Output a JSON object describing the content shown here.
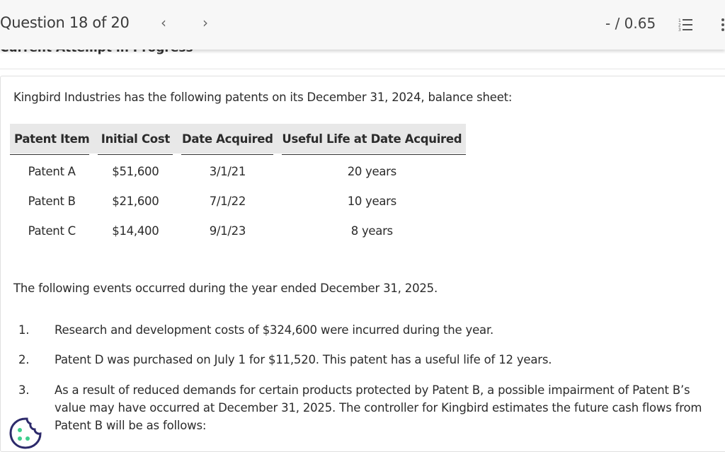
{
  "header": {
    "question_label": "Question 18 of 20",
    "prev_icon": "chevron-left-icon",
    "next_icon": "chevron-right-icon",
    "score": "- / 0.65",
    "list_icon": "numbered-list-icon",
    "more_icon": "more-vertical-icon"
  },
  "attempt_status": "Current Attempt in Progress",
  "question": {
    "intro": "Kingbird Industries has the following patents on its December 31, 2024, balance sheet:",
    "table": {
      "headers": [
        "Patent Item",
        "Initial Cost",
        "Date Acquired",
        "Useful Life at Date Acquired"
      ],
      "rows": [
        [
          "Patent A",
          "$51,600",
          "3/1/21",
          "20 years"
        ],
        [
          "Patent B",
          "$21,600",
          "7/1/22",
          "10 years"
        ],
        [
          "Patent C",
          "$14,400",
          "9/1/23",
          "8 years"
        ]
      ]
    },
    "events_intro": "The following events occurred during the year ended December 31, 2025.",
    "events": [
      {
        "num": "1.",
        "text": "Research and development costs of $324,600 were incurred during the year."
      },
      {
        "num": "2.",
        "text": "Patent D was purchased on July 1 for $11,520. This patent has a useful life of 12 years."
      },
      {
        "num": "3.",
        "text": "As a result of reduced demands for certain products protected by Patent B, a possible impairment of Patent B’s value may have occurred at December 31, 2025. The controller for Kingbird estimates the future cash flows from Patent B will be as follows:"
      }
    ]
  },
  "cookie_icon": "cookie-icon",
  "colors": {
    "header_bg": "#f7f7f7",
    "table_header_bg": "#e8e8e8",
    "cookie_outline": "#2d2a6b",
    "cookie_dots": "#3fcf8e"
  }
}
